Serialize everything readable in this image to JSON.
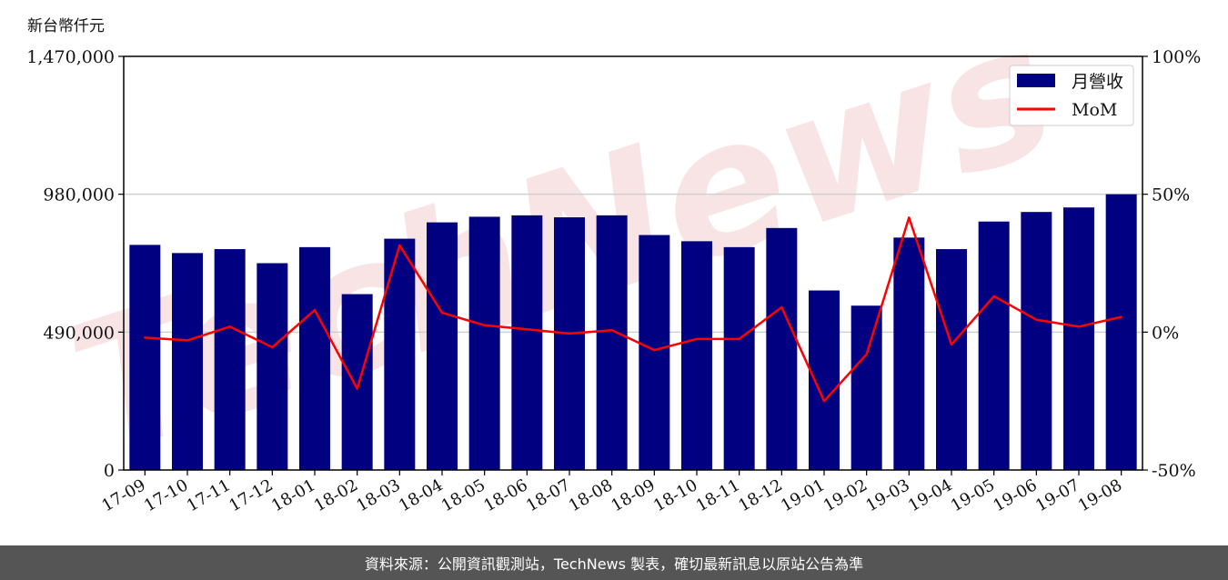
{
  "unit_label": "新台幣仟元",
  "footer": "資料來源：公開資訊觀測站，TechNews 製表，確切最新訊息以原站公告為準",
  "colors": {
    "bar": "#000080",
    "line": "#ff0000",
    "grid": "#d0d0d0",
    "watermark": "#f6dcdc",
    "footer_bg": "#555555"
  },
  "watermark": "TechNews",
  "chart_data": {
    "type": "bar",
    "categories": [
      "17-09",
      "17-10",
      "17-11",
      "17-12",
      "18-01",
      "18-02",
      "18-03",
      "18-04",
      "18-05",
      "18-06",
      "18-07",
      "18-08",
      "18-09",
      "18-10",
      "18-11",
      "18-12",
      "19-01",
      "19-02",
      "19-03",
      "19-04",
      "19-05",
      "19-06",
      "19-07",
      "19-08"
    ],
    "series": [
      {
        "name": "月營收",
        "axis": "left",
        "kind": "bar",
        "values": [
          800000,
          771000,
          785000,
          735000,
          792000,
          625000,
          822000,
          880000,
          900000,
          905000,
          898000,
          905000,
          835000,
          813000,
          792000,
          860000,
          638000,
          584000,
          826000,
          785000,
          883000,
          917000,
          933000,
          980000
        ]
      },
      {
        "name": "MoM",
        "axis": "right",
        "kind": "line",
        "values": [
          -2,
          -3,
          2,
          -5.5,
          8,
          -20.5,
          31.5,
          7,
          2.5,
          1,
          -0.5,
          0.7,
          -6.5,
          -2.5,
          -2.5,
          9,
          -25,
          -8,
          41.5,
          -4.5,
          13,
          4.5,
          2,
          5.5
        ]
      }
    ],
    "yticks_left": [
      "0",
      "490,000",
      "980,000",
      "1,470,000"
    ],
    "yticks_right": [
      "-50%",
      "0%",
      "50%",
      "100%"
    ],
    "ylim_left": [
      0,
      1470000
    ],
    "ylim_right": [
      -50,
      100
    ],
    "grid": "horizontal",
    "legend_position": "top-right"
  }
}
